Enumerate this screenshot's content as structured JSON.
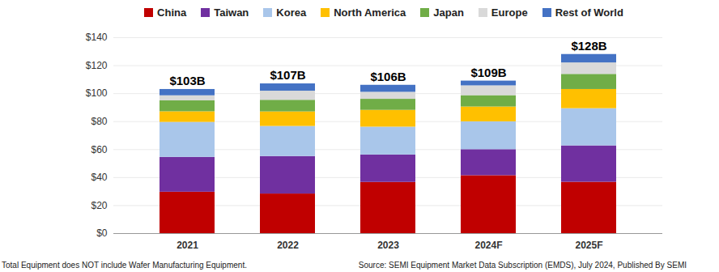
{
  "chart_data": {
    "type": "bar",
    "stacked": true,
    "grid": true,
    "legend": "top",
    "categories": [
      "2021",
      "2022",
      "2023",
      "2024F",
      "2025F"
    ],
    "series": [
      {
        "name": "China",
        "color": "#c00000",
        "values": [
          29.6,
          28.3,
          36.6,
          41.4,
          36.7
        ]
      },
      {
        "name": "Taiwan",
        "color": "#7030a0",
        "values": [
          24.9,
          26.8,
          19.6,
          18.6,
          26.0
        ]
      },
      {
        "name": "Korea",
        "color": "#a9c6ea",
        "values": [
          25.0,
          21.5,
          19.9,
          19.9,
          26.6
        ]
      },
      {
        "name": "North America",
        "color": "#ffc000",
        "values": [
          7.6,
          10.4,
          12.0,
          10.6,
          13.7
        ]
      },
      {
        "name": "Japan",
        "color": "#70ad47",
        "values": [
          7.8,
          8.3,
          7.9,
          8.1,
          10.8
        ]
      },
      {
        "name": "Europe",
        "color": "#d9d9d9",
        "values": [
          3.6,
          6.5,
          5.0,
          7.0,
          8.2
        ]
      },
      {
        "name": "Rest of World",
        "color": "#4472c4",
        "values": [
          4.5,
          5.2,
          5.0,
          3.4,
          6.0
        ]
      }
    ],
    "totals": [
      103,
      107,
      106,
      109,
      128
    ],
    "total_labels": [
      "$103B",
      "$107B",
      "$106B",
      "$109B",
      "$128B"
    ],
    "ylim": [
      0,
      140
    ],
    "yticks": [
      {
        "value": 0,
        "label": "$0"
      },
      {
        "value": 20,
        "label": "$20"
      },
      {
        "value": 40,
        "label": "$40"
      },
      {
        "value": 60,
        "label": "$60"
      },
      {
        "value": 80,
        "label": "$80"
      },
      {
        "value": 100,
        "label": "$100"
      },
      {
        "value": 120,
        "label": "$120"
      },
      {
        "value": 140,
        "label": "$140"
      }
    ],
    "footnote": "Total Equipment does NOT include Wafer Manufacturing Equipment.",
    "source": "Source: SEMI Equipment Market Data Subscription (EMDS), July 2024, Published By SEMI"
  }
}
